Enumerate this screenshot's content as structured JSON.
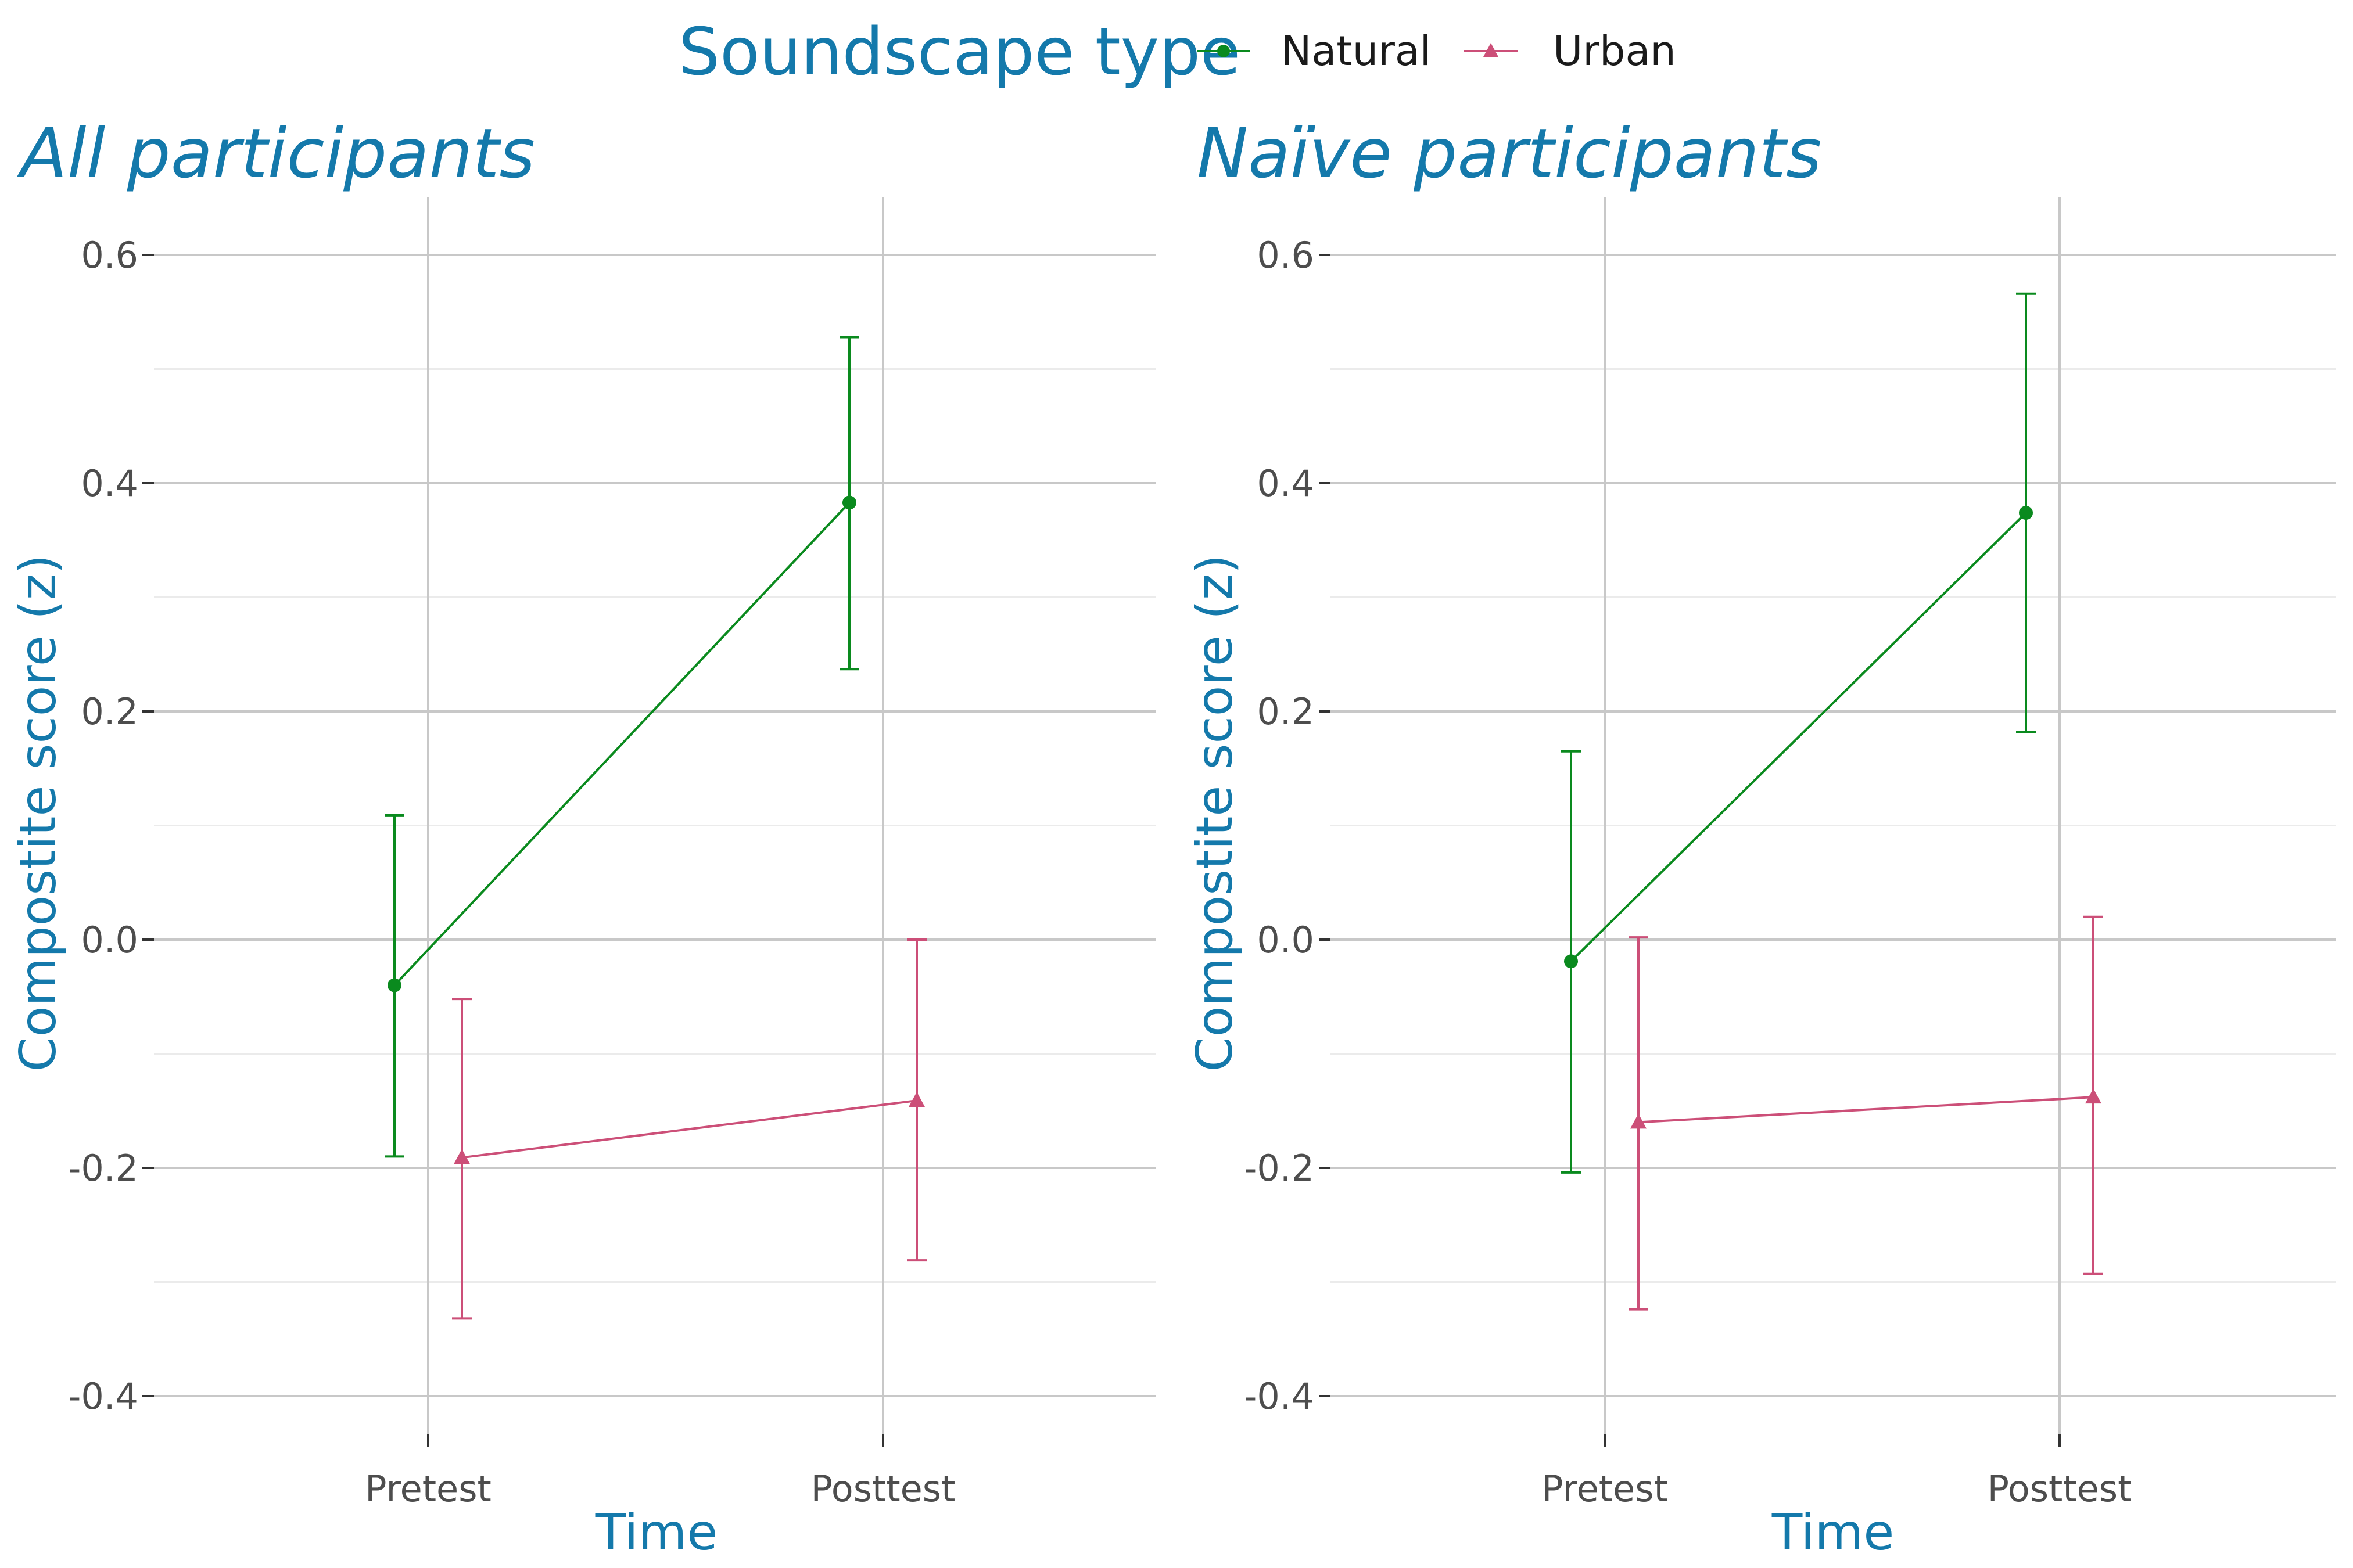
{
  "legend": {
    "title": "Soundscape type",
    "items": [
      {
        "label": "Natural",
        "color": "#0a8a1e",
        "marker": "circle"
      },
      {
        "label": "Urban",
        "color": "#cc4f78",
        "marker": "triangle"
      }
    ]
  },
  "colors": {
    "accent_text": "#1479ab",
    "grid_major": "#c8c8c8",
    "grid_minor": "#ebebeb",
    "tick_text": "#4d4d4d"
  },
  "chart_data": [
    {
      "type": "line",
      "title": "All participants",
      "xlabel": "Time",
      "ylabel": "Compostite score (z)",
      "categories": [
        "Pretest",
        "Posttest"
      ],
      "ylim": [
        -0.45,
        0.62
      ],
      "yticks": [
        0.6,
        0.4,
        0.2,
        0.0,
        -0.2,
        -0.4
      ],
      "ytick_labels": [
        "0.6",
        "0.4",
        "0.2",
        "0.0",
        "-0.2",
        "-0.4"
      ],
      "grid": true,
      "error_bars": true,
      "series": [
        {
          "name": "Natural",
          "values": [
            -0.04,
            0.383
          ],
          "lower": [
            -0.19,
            0.237
          ],
          "upper": [
            0.109,
            0.528
          ]
        },
        {
          "name": "Urban",
          "values": [
            -0.191,
            -0.141
          ],
          "lower": [
            -0.332,
            -0.281
          ],
          "upper": [
            -0.052,
            0.0
          ]
        }
      ]
    },
    {
      "type": "line",
      "title": "Naïve participants",
      "xlabel": "Time",
      "ylabel": "Compostite score (z)",
      "categories": [
        "Pretest",
        "Posttest"
      ],
      "ylim": [
        -0.45,
        0.62
      ],
      "yticks": [
        0.6,
        0.4,
        0.2,
        0.0,
        -0.2,
        -0.4
      ],
      "ytick_labels": [
        "0.6",
        "0.4",
        "0.2",
        "0.0",
        "-0.2",
        "-0.4"
      ],
      "grid": true,
      "error_bars": true,
      "series": [
        {
          "name": "Natural",
          "values": [
            -0.019,
            0.374
          ],
          "lower": [
            -0.204,
            0.182
          ],
          "upper": [
            0.165,
            0.566
          ]
        },
        {
          "name": "Urban",
          "values": [
            -0.16,
            -0.138
          ],
          "lower": [
            -0.324,
            -0.293
          ],
          "upper": [
            0.002,
            0.02
          ]
        }
      ]
    }
  ]
}
